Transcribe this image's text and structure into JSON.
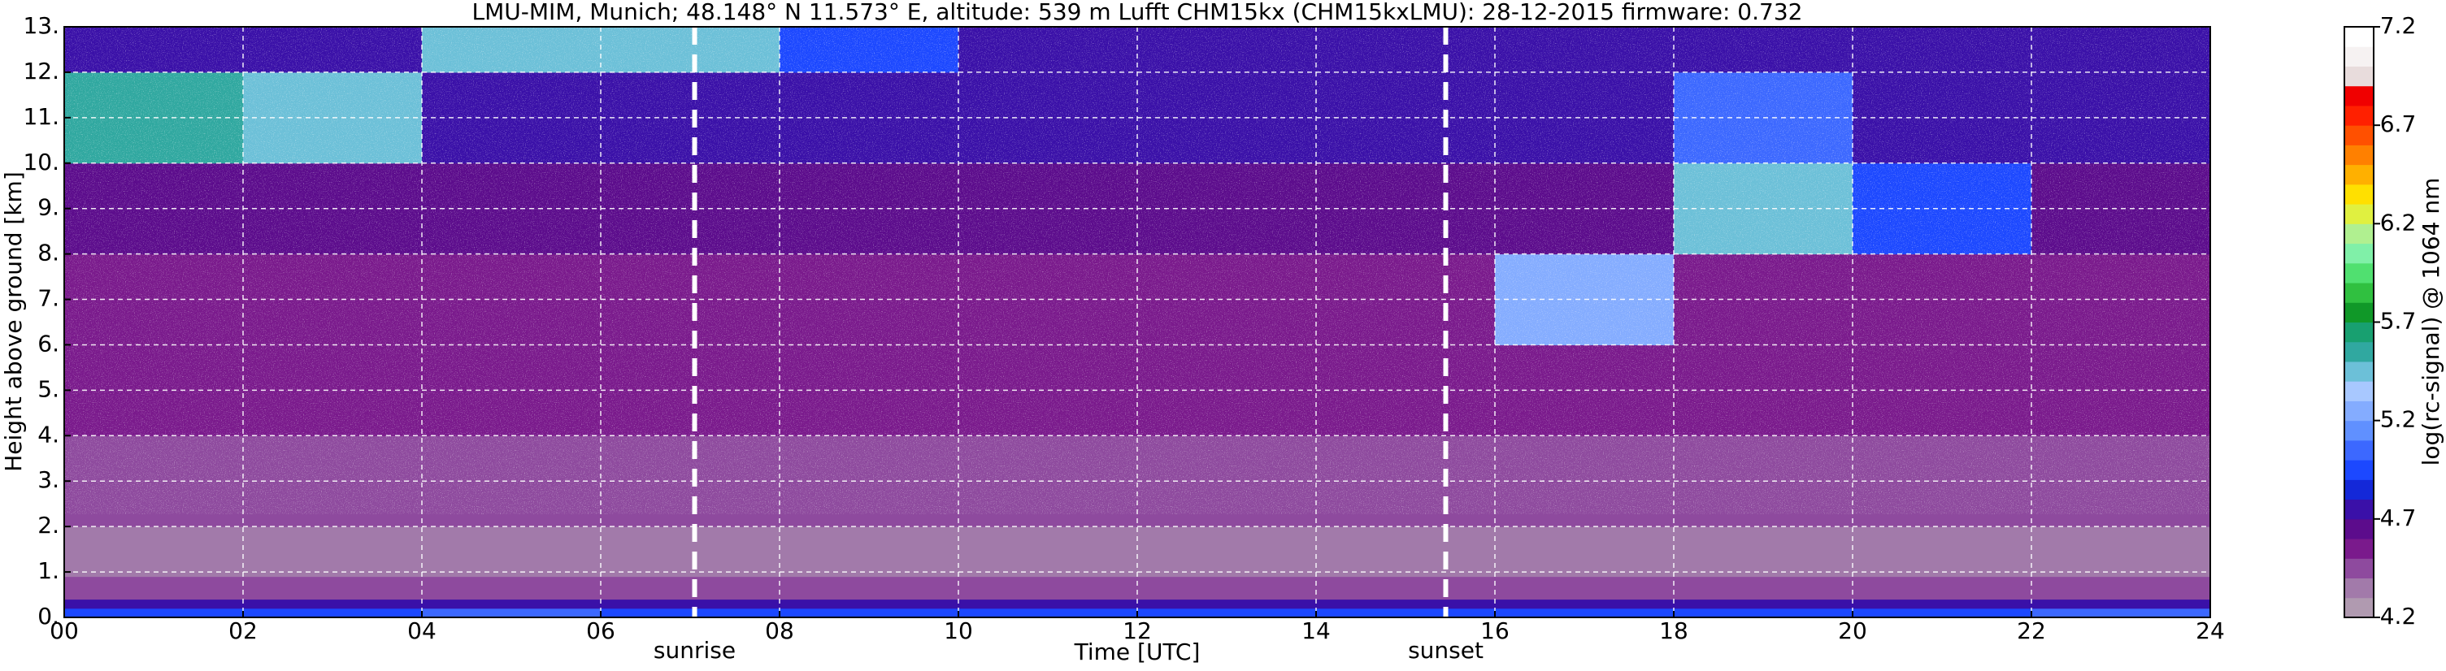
{
  "chart_data": {
    "type": "heatmap",
    "title": "LMU-MIM, Munich; 48.148° N 11.573° E, altitude: 539 m    Lufft CHM15kx (CHM15kxLMU): 28-12-2015    firmware: 0.732",
    "x_label": "Time [UTC]",
    "y_label": "Height above ground [km]",
    "xlim": [
      0,
      24
    ],
    "ylim": [
      0,
      13
    ],
    "xticks": [
      {
        "value": 0,
        "label": "00"
      },
      {
        "value": 2,
        "label": "02"
      },
      {
        "value": 4,
        "label": "04"
      },
      {
        "value": 6,
        "label": "06"
      },
      {
        "value": 8,
        "label": "08"
      },
      10,
      12,
      14,
      16,
      18,
      20,
      22,
      24
    ],
    "yticks": [
      {
        "value": 0,
        "label": "0."
      },
      {
        "value": 1,
        "label": "1."
      },
      {
        "value": 2,
        "label": "2."
      },
      {
        "value": 3,
        "label": "3."
      },
      {
        "value": 4,
        "label": "4."
      },
      {
        "value": 5,
        "label": "5."
      },
      {
        "value": 6,
        "label": "6."
      },
      {
        "value": 7,
        "label": "7."
      },
      {
        "value": 8,
        "label": "8."
      },
      {
        "value": 9,
        "label": "9."
      },
      {
        "value": 10,
        "label": "10."
      },
      {
        "value": 11,
        "label": "11."
      },
      {
        "value": 12,
        "label": "12."
      },
      {
        "value": 13,
        "label": "13."
      }
    ],
    "grid": true,
    "x_bins": [
      0,
      2,
      4,
      6,
      8,
      10,
      12,
      14,
      16,
      18,
      20,
      22,
      24
    ],
    "y_bins": [
      0,
      0.2,
      0.4,
      0.9,
      2,
      4,
      6,
      8,
      10,
      12,
      13
    ],
    "z": [
      [
        5.0,
        5.0,
        5.1,
        5.0,
        5.0,
        5.0,
        5.0,
        5.0,
        5.0,
        5.0,
        5.0,
        5.1
      ],
      [
        4.8,
        4.8,
        4.8,
        4.8,
        4.8,
        4.8,
        4.8,
        4.8,
        4.8,
        4.8,
        4.8,
        4.8
      ],
      [
        4.5,
        4.5,
        4.5,
        4.5,
        4.5,
        4.5,
        4.5,
        4.5,
        4.5,
        4.5,
        4.5,
        4.5
      ],
      [
        4.35,
        4.35,
        4.35,
        4.35,
        4.35,
        4.35,
        4.35,
        4.35,
        4.35,
        4.35,
        4.35,
        4.35
      ],
      [
        4.5,
        4.5,
        4.5,
        4.5,
        4.5,
        4.5,
        4.5,
        4.5,
        4.5,
        4.5,
        4.5,
        4.5
      ],
      [
        4.6,
        4.6,
        4.6,
        4.6,
        4.6,
        4.6,
        4.6,
        4.6,
        4.6,
        4.6,
        4.6,
        4.6
      ],
      [
        4.6,
        4.6,
        4.6,
        4.6,
        4.6,
        4.6,
        4.6,
        4.6,
        5.3,
        4.6,
        4.6,
        4.6
      ],
      [
        4.65,
        4.65,
        4.65,
        4.65,
        4.65,
        4.65,
        4.65,
        4.65,
        4.65,
        5.4,
        5.0,
        4.65
      ],
      [
        5.6,
        5.4,
        4.7,
        4.7,
        4.7,
        4.7,
        4.7,
        4.7,
        4.7,
        5.1,
        4.7,
        4.7
      ],
      [
        4.75,
        4.75,
        5.4,
        5.5,
        5.0,
        4.75,
        4.75,
        4.75,
        4.75,
        4.75,
        4.75,
        4.75
      ]
    ],
    "annotations": [
      {
        "text": "sunrise",
        "x": 7.05
      },
      {
        "text": "sunset",
        "x": 15.45
      }
    ],
    "colorbar": {
      "label": "log(rc-signal) @ 1064 nm",
      "lim": [
        4.2,
        7.2
      ],
      "ticks": [
        4.2,
        4.7,
        5.2,
        5.7,
        6.2,
        6.7,
        7.2
      ],
      "colors": [
        "#b09ab0",
        "#a27aaa",
        "#8e4a9e",
        "#7a1a8c",
        "#5c0c8c",
        "#3a10a8",
        "#1428d8",
        "#1c48ff",
        "#3c68ff",
        "#6090ff",
        "#84acff",
        "#a8c8ff",
        "#6cc0d8",
        "#30a8a0",
        "#18a070",
        "#109828",
        "#30c040",
        "#50e070",
        "#80f0a8",
        "#b0f090",
        "#e0f040",
        "#ffe000",
        "#ffb000",
        "#ff8000",
        "#ff5000",
        "#ff2000",
        "#f00000",
        "#e8dcdc",
        "#f6f2f2",
        "#ffffff"
      ]
    }
  }
}
